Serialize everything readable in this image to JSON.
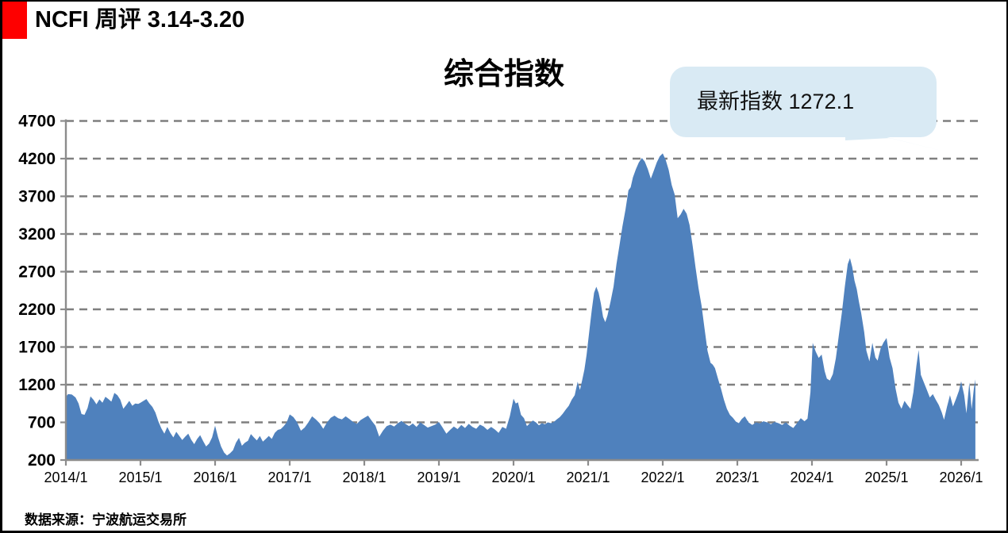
{
  "header": {
    "title": "NCFI 周评 3.14-3.20"
  },
  "chart": {
    "title": "综合指数"
  },
  "annotation": {
    "text": "最新指数 1272.1"
  },
  "footer": {
    "source": "数据来源：宁波航运交易所"
  },
  "colors": {
    "accent_red": "#FE0000",
    "area_fill": "#4F81BD",
    "gridline": "#7F7F7F",
    "axis": "#8C8C8C",
    "bubble_bg": "#D9EAF4",
    "text": "#000000"
  },
  "chart_data": {
    "type": "area",
    "title": "综合指数",
    "series_name": "NCFI 综合指数",
    "latest_value": 1272.1,
    "grid": true,
    "ylim": [
      200,
      4700
    ],
    "y_ticks": [
      4700,
      4200,
      3700,
      3200,
      2700,
      2200,
      1700,
      1200,
      700,
      200
    ],
    "x_ticks": [
      "2014/1",
      "2015/1",
      "2016/1",
      "2017/1",
      "2018/1",
      "2019/1",
      "2020/1",
      "2021/1",
      "2022/1",
      "2023/1",
      "2024/1",
      "2025/1",
      "2026/1"
    ],
    "x_start_year": 2014,
    "points": [
      [
        2014.0,
        1040
      ],
      [
        2014.03,
        1075
      ],
      [
        2014.08,
        1070
      ],
      [
        2014.13,
        1030
      ],
      [
        2014.17,
        950
      ],
      [
        2014.21,
        810
      ],
      [
        2014.25,
        800
      ],
      [
        2014.29,
        890
      ],
      [
        2014.33,
        1045
      ],
      [
        2014.37,
        1000
      ],
      [
        2014.41,
        940
      ],
      [
        2014.45,
        1005
      ],
      [
        2014.49,
        960
      ],
      [
        2014.53,
        1040
      ],
      [
        2014.57,
        1010
      ],
      [
        2014.61,
        975
      ],
      [
        2014.65,
        1090
      ],
      [
        2014.69,
        1060
      ],
      [
        2014.73,
        1000
      ],
      [
        2014.77,
        880
      ],
      [
        2014.81,
        930
      ],
      [
        2014.85,
        985
      ],
      [
        2014.89,
        920
      ],
      [
        2014.93,
        950
      ],
      [
        2014.97,
        945
      ],
      [
        2015.0,
        960
      ],
      [
        2015.04,
        985
      ],
      [
        2015.08,
        1010
      ],
      [
        2015.12,
        950
      ],
      [
        2015.16,
        905
      ],
      [
        2015.2,
        830
      ],
      [
        2015.24,
        710
      ],
      [
        2015.28,
        620
      ],
      [
        2015.32,
        550
      ],
      [
        2015.36,
        640
      ],
      [
        2015.4,
        560
      ],
      [
        2015.44,
        500
      ],
      [
        2015.48,
        575
      ],
      [
        2015.52,
        520
      ],
      [
        2015.56,
        465
      ],
      [
        2015.6,
        510
      ],
      [
        2015.64,
        550
      ],
      [
        2015.68,
        470
      ],
      [
        2015.72,
        410
      ],
      [
        2015.76,
        480
      ],
      [
        2015.8,
        530
      ],
      [
        2015.84,
        450
      ],
      [
        2015.88,
        380
      ],
      [
        2015.92,
        420
      ],
      [
        2015.96,
        500
      ],
      [
        2016.0,
        655
      ],
      [
        2016.04,
        500
      ],
      [
        2016.08,
        380
      ],
      [
        2016.12,
        300
      ],
      [
        2016.16,
        260
      ],
      [
        2016.2,
        290
      ],
      [
        2016.24,
        330
      ],
      [
        2016.28,
        430
      ],
      [
        2016.32,
        495
      ],
      [
        2016.36,
        390
      ],
      [
        2016.4,
        430
      ],
      [
        2016.44,
        455
      ],
      [
        2016.48,
        545
      ],
      [
        2016.52,
        500
      ],
      [
        2016.56,
        460
      ],
      [
        2016.6,
        520
      ],
      [
        2016.64,
        445
      ],
      [
        2016.68,
        480
      ],
      [
        2016.72,
        520
      ],
      [
        2016.76,
        480
      ],
      [
        2016.8,
        560
      ],
      [
        2016.84,
        600
      ],
      [
        2016.88,
        610
      ],
      [
        2016.92,
        650
      ],
      [
        2016.96,
        700
      ],
      [
        2017.0,
        805
      ],
      [
        2017.05,
        770
      ],
      [
        2017.1,
        700
      ],
      [
        2017.15,
        590
      ],
      [
        2017.2,
        630
      ],
      [
        2017.25,
        700
      ],
      [
        2017.3,
        780
      ],
      [
        2017.35,
        740
      ],
      [
        2017.4,
        690
      ],
      [
        2017.45,
        615
      ],
      [
        2017.5,
        700
      ],
      [
        2017.55,
        760
      ],
      [
        2017.6,
        790
      ],
      [
        2017.65,
        755
      ],
      [
        2017.7,
        740
      ],
      [
        2017.75,
        780
      ],
      [
        2017.8,
        745
      ],
      [
        2017.85,
        705
      ],
      [
        2017.9,
        680
      ],
      [
        2017.95,
        730
      ],
      [
        2018.0,
        760
      ],
      [
        2018.05,
        790
      ],
      [
        2018.1,
        720
      ],
      [
        2018.15,
        655
      ],
      [
        2018.2,
        510
      ],
      [
        2018.25,
        590
      ],
      [
        2018.3,
        650
      ],
      [
        2018.35,
        670
      ],
      [
        2018.4,
        645
      ],
      [
        2018.45,
        690
      ],
      [
        2018.5,
        720
      ],
      [
        2018.55,
        680
      ],
      [
        2018.6,
        650
      ],
      [
        2018.65,
        685
      ],
      [
        2018.7,
        640
      ],
      [
        2018.75,
        700
      ],
      [
        2018.8,
        665
      ],
      [
        2018.85,
        630
      ],
      [
        2018.9,
        650
      ],
      [
        2018.95,
        670
      ],
      [
        2019.0,
        705
      ],
      [
        2019.05,
        630
      ],
      [
        2019.1,
        550
      ],
      [
        2019.15,
        600
      ],
      [
        2019.2,
        645
      ],
      [
        2019.25,
        610
      ],
      [
        2019.3,
        665
      ],
      [
        2019.35,
        625
      ],
      [
        2019.4,
        680
      ],
      [
        2019.45,
        640
      ],
      [
        2019.5,
        615
      ],
      [
        2019.55,
        670
      ],
      [
        2019.6,
        645
      ],
      [
        2019.65,
        600
      ],
      [
        2019.7,
        640
      ],
      [
        2019.75,
        605
      ],
      [
        2019.8,
        560
      ],
      [
        2019.85,
        640
      ],
      [
        2019.9,
        615
      ],
      [
        2019.95,
        780
      ],
      [
        2020.0,
        1015
      ],
      [
        2020.03,
        950
      ],
      [
        2020.06,
        965
      ],
      [
        2020.1,
        800
      ],
      [
        2020.14,
        755
      ],
      [
        2020.18,
        650
      ],
      [
        2020.22,
        690
      ],
      [
        2020.26,
        725
      ],
      [
        2020.3,
        700
      ],
      [
        2020.34,
        660
      ],
      [
        2020.38,
        690
      ],
      [
        2020.42,
        675
      ],
      [
        2020.46,
        700
      ],
      [
        2020.5,
        690
      ],
      [
        2020.54,
        705
      ],
      [
        2020.58,
        740
      ],
      [
        2020.62,
        770
      ],
      [
        2020.66,
        815
      ],
      [
        2020.7,
        870
      ],
      [
        2020.74,
        920
      ],
      [
        2020.78,
        1000
      ],
      [
        2020.82,
        1060
      ],
      [
        2020.86,
        1240
      ],
      [
        2020.89,
        1130
      ],
      [
        2020.92,
        1260
      ],
      [
        2020.95,
        1400
      ],
      [
        2020.98,
        1600
      ],
      [
        2021.02,
        1950
      ],
      [
        2021.05,
        2200
      ],
      [
        2021.08,
        2420
      ],
      [
        2021.11,
        2500
      ],
      [
        2021.14,
        2420
      ],
      [
        2021.17,
        2280
      ],
      [
        2021.2,
        2100
      ],
      [
        2021.23,
        2030
      ],
      [
        2021.26,
        2120
      ],
      [
        2021.3,
        2300
      ],
      [
        2021.34,
        2500
      ],
      [
        2021.38,
        2800
      ],
      [
        2021.42,
        3050
      ],
      [
        2021.46,
        3300
      ],
      [
        2021.5,
        3520
      ],
      [
        2021.54,
        3780
      ],
      [
        2021.57,
        3820
      ],
      [
        2021.6,
        3950
      ],
      [
        2021.64,
        4060
      ],
      [
        2021.68,
        4150
      ],
      [
        2021.72,
        4210
      ],
      [
        2021.76,
        4160
      ],
      [
        2021.8,
        4060
      ],
      [
        2021.84,
        3935
      ],
      [
        2021.88,
        4040
      ],
      [
        2021.92,
        4150
      ],
      [
        2021.96,
        4230
      ],
      [
        2022.0,
        4270
      ],
      [
        2022.04,
        4180
      ],
      [
        2022.08,
        4050
      ],
      [
        2022.12,
        3850
      ],
      [
        2022.16,
        3725
      ],
      [
        2022.2,
        3410
      ],
      [
        2022.24,
        3460
      ],
      [
        2022.28,
        3535
      ],
      [
        2022.32,
        3470
      ],
      [
        2022.36,
        3320
      ],
      [
        2022.4,
        3050
      ],
      [
        2022.44,
        2750
      ],
      [
        2022.48,
        2480
      ],
      [
        2022.52,
        2250
      ],
      [
        2022.56,
        1950
      ],
      [
        2022.6,
        1650
      ],
      [
        2022.64,
        1490
      ],
      [
        2022.67,
        1465
      ],
      [
        2022.7,
        1420
      ],
      [
        2022.74,
        1280
      ],
      [
        2022.78,
        1150
      ],
      [
        2022.82,
        1000
      ],
      [
        2022.86,
        880
      ],
      [
        2022.9,
        800
      ],
      [
        2022.94,
        760
      ],
      [
        2022.98,
        710
      ],
      [
        2023.02,
        690
      ],
      [
        2023.06,
        745
      ],
      [
        2023.1,
        780
      ],
      [
        2023.15,
        700
      ],
      [
        2023.2,
        665
      ],
      [
        2023.25,
        700
      ],
      [
        2023.3,
        685
      ],
      [
        2023.35,
        715
      ],
      [
        2023.4,
        700
      ],
      [
        2023.45,
        675
      ],
      [
        2023.5,
        705
      ],
      [
        2023.55,
        690
      ],
      [
        2023.6,
        665
      ],
      [
        2023.65,
        700
      ],
      [
        2023.7,
        655
      ],
      [
        2023.75,
        625
      ],
      [
        2023.8,
        690
      ],
      [
        2023.85,
        755
      ],
      [
        2023.9,
        715
      ],
      [
        2023.94,
        750
      ],
      [
        2023.98,
        1100
      ],
      [
        2024.01,
        1755
      ],
      [
        2024.05,
        1640
      ],
      [
        2024.09,
        1555
      ],
      [
        2024.13,
        1600
      ],
      [
        2024.17,
        1380
      ],
      [
        2024.2,
        1280
      ],
      [
        2024.24,
        1255
      ],
      [
        2024.28,
        1340
      ],
      [
        2024.32,
        1550
      ],
      [
        2024.36,
        1850
      ],
      [
        2024.4,
        2150
      ],
      [
        2024.44,
        2500
      ],
      [
        2024.48,
        2800
      ],
      [
        2024.51,
        2880
      ],
      [
        2024.54,
        2760
      ],
      [
        2024.57,
        2580
      ],
      [
        2024.6,
        2470
      ],
      [
        2024.63,
        2300
      ],
      [
        2024.66,
        2150
      ],
      [
        2024.7,
        1900
      ],
      [
        2024.73,
        1650
      ],
      [
        2024.77,
        1510
      ],
      [
        2024.81,
        1755
      ],
      [
        2024.85,
        1560
      ],
      [
        2024.88,
        1520
      ],
      [
        2024.92,
        1680
      ],
      [
        2024.96,
        1760
      ],
      [
        2025.0,
        1820
      ],
      [
        2025.04,
        1560
      ],
      [
        2025.08,
        1420
      ],
      [
        2025.12,
        1150
      ],
      [
        2025.16,
        960
      ],
      [
        2025.2,
        880
      ],
      [
        2025.24,
        985
      ],
      [
        2025.28,
        930
      ],
      [
        2025.32,
        880
      ],
      [
        2025.36,
        1100
      ],
      [
        2025.4,
        1450
      ],
      [
        2025.43,
        1660
      ],
      [
        2025.46,
        1330
      ],
      [
        2025.5,
        1230
      ],
      [
        2025.54,
        1130
      ],
      [
        2025.58,
        1030
      ],
      [
        2025.62,
        1075
      ],
      [
        2025.66,
        1000
      ],
      [
        2025.7,
        930
      ],
      [
        2025.74,
        830
      ],
      [
        2025.77,
        735
      ],
      [
        2025.81,
        905
      ],
      [
        2025.85,
        1060
      ],
      [
        2025.89,
        910
      ],
      [
        2025.93,
        1010
      ],
      [
        2025.97,
        1120
      ],
      [
        2026.0,
        1245
      ],
      [
        2026.04,
        1060
      ],
      [
        2026.07,
        820
      ],
      [
        2026.11,
        1230
      ],
      [
        2026.14,
        875
      ],
      [
        2026.17,
        1150
      ],
      [
        2026.19,
        1272.1
      ]
    ]
  }
}
